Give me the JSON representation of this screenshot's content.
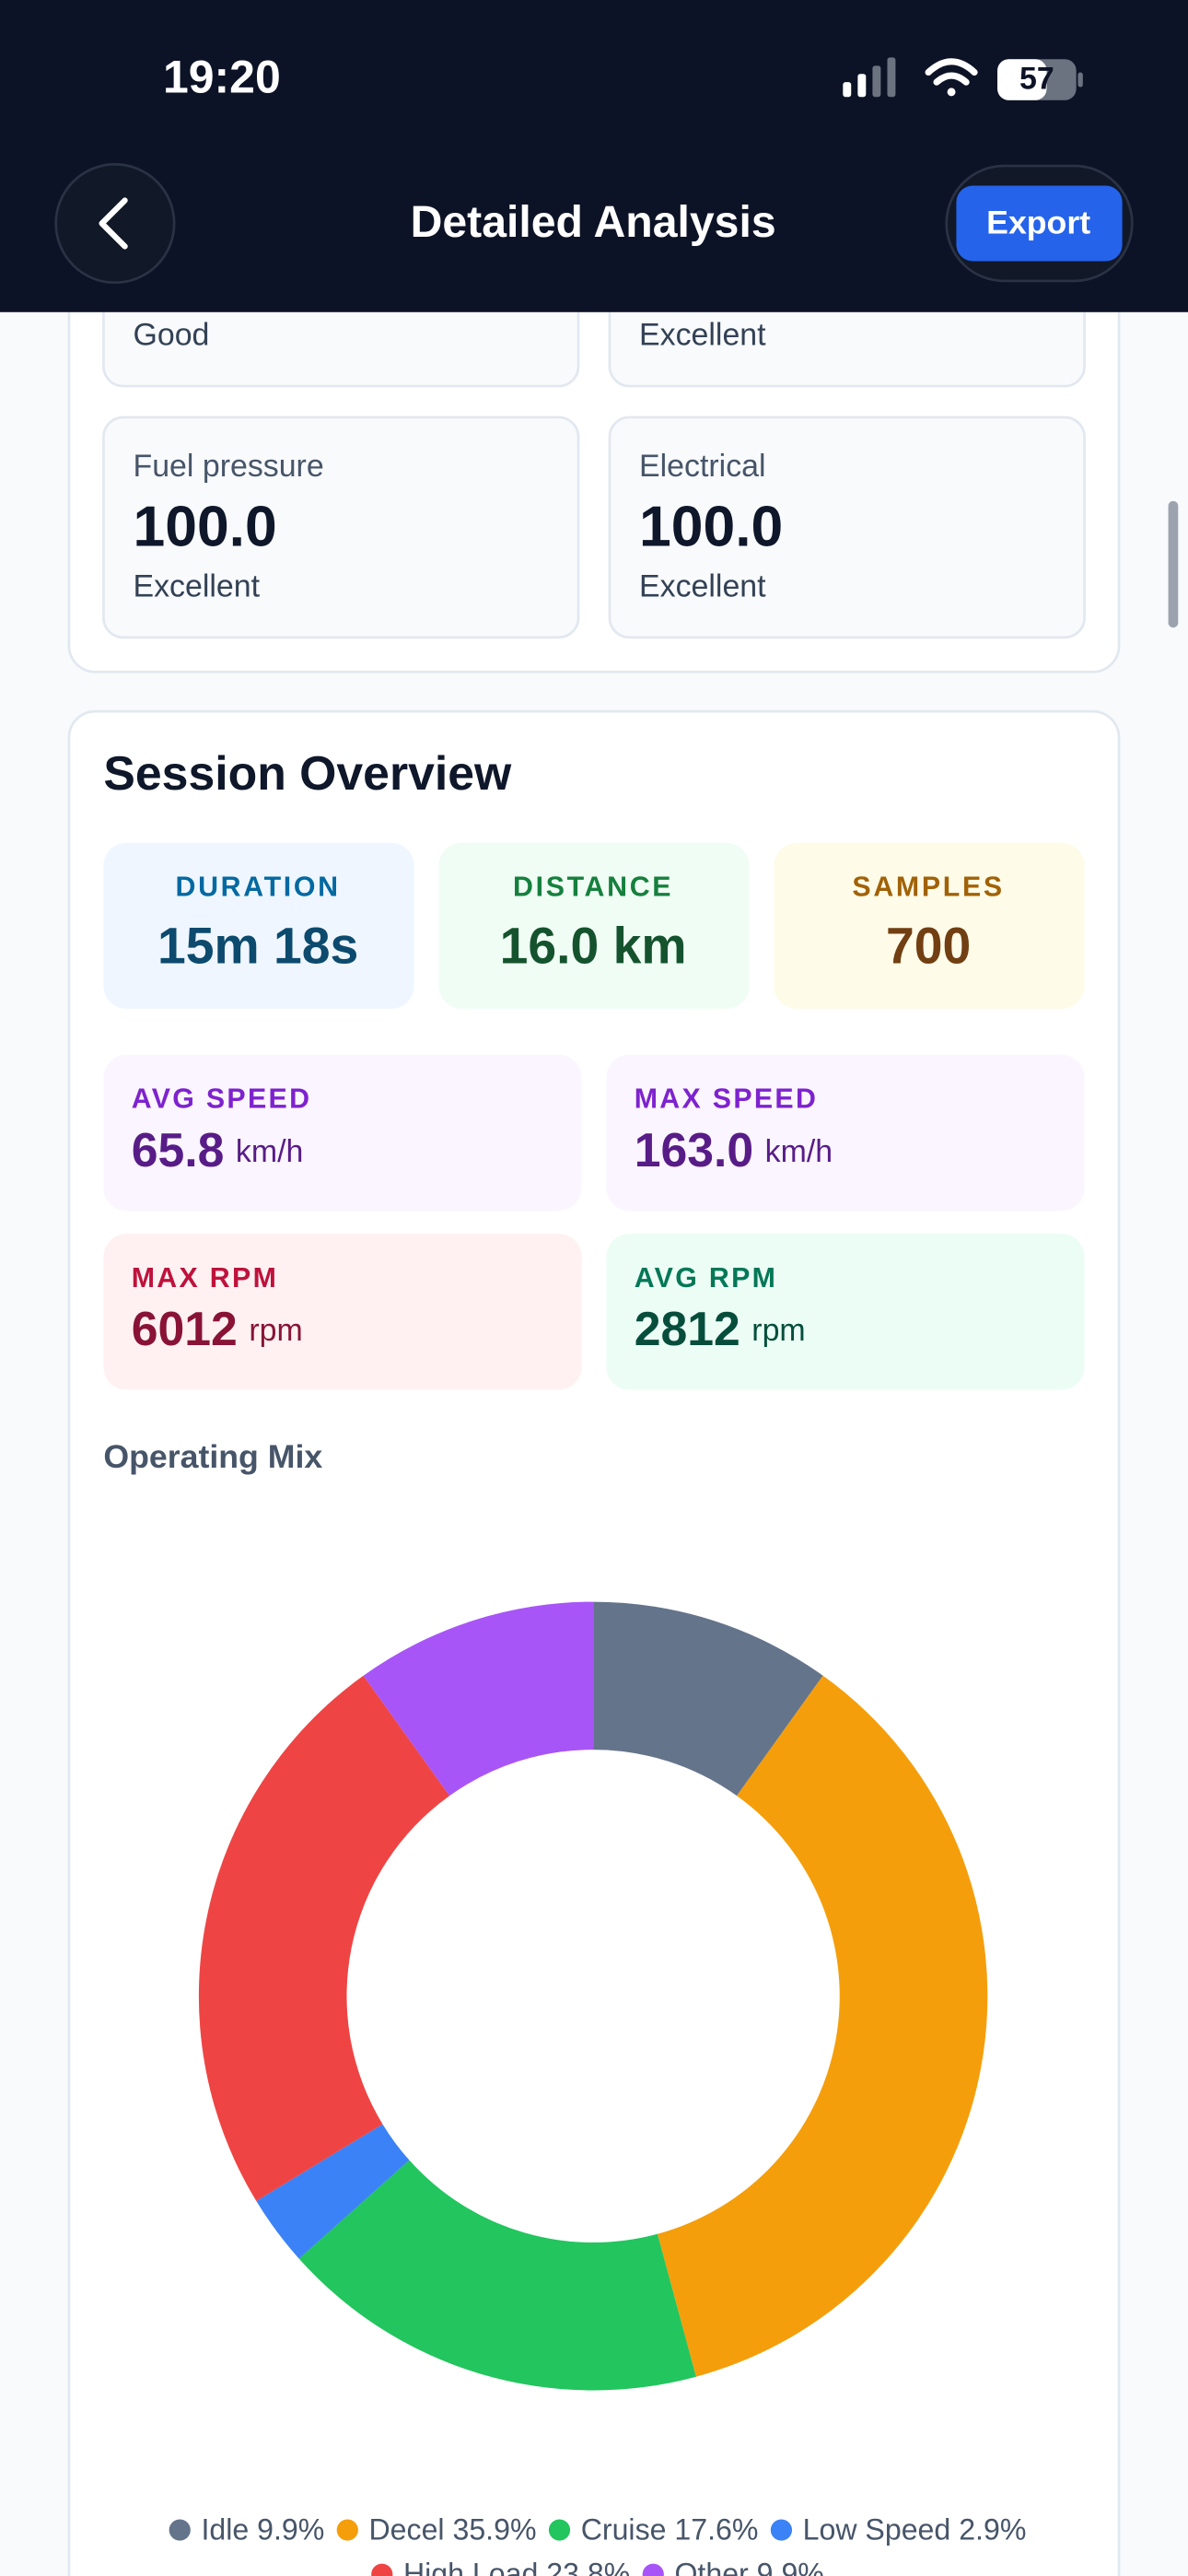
{
  "status_bar": {
    "time": "19:20",
    "battery": "57"
  },
  "header": {
    "title": "Detailed Analysis",
    "export": "Export"
  },
  "health_cards": [
    {
      "status": "Good"
    },
    {
      "status": "Excellent"
    },
    {
      "label": "Fuel pressure",
      "value": "100.0",
      "status": "Excellent"
    },
    {
      "label": "Electrical",
      "value": "100.0",
      "status": "Excellent"
    }
  ],
  "session": {
    "title": "Session Overview",
    "stats": [
      {
        "label": "DURATION",
        "value": "15m 18s"
      },
      {
        "label": "DISTANCE",
        "value": "16.0 km"
      },
      {
        "label": "SAMPLES",
        "value": "700"
      }
    ],
    "metrics": [
      {
        "label": "AVG SPEED",
        "value": "65.8",
        "unit": "km/h"
      },
      {
        "label": "MAX SPEED",
        "value": "163.0",
        "unit": "km/h"
      },
      {
        "label": "MAX RPM",
        "value": "6012",
        "unit": "rpm"
      },
      {
        "label": "AVG RPM",
        "value": "2812",
        "unit": "rpm"
      }
    ]
  },
  "chart_data": {
    "type": "pie",
    "title": "Operating Mix",
    "donut": true,
    "categories": [
      "Idle",
      "Decel",
      "Cruise",
      "Low Speed",
      "High Load",
      "Other"
    ],
    "values": [
      9.9,
      35.9,
      17.6,
      2.9,
      23.8,
      9.9
    ],
    "value_labels": [
      "9.9%",
      "35.9%",
      "17.6%",
      "2.9%",
      "23.8%",
      "9.9%"
    ],
    "colors": [
      "#64748b",
      "#f59e0b",
      "#22c55e",
      "#3b82f6",
      "#ef4444",
      "#a855f7"
    ]
  }
}
